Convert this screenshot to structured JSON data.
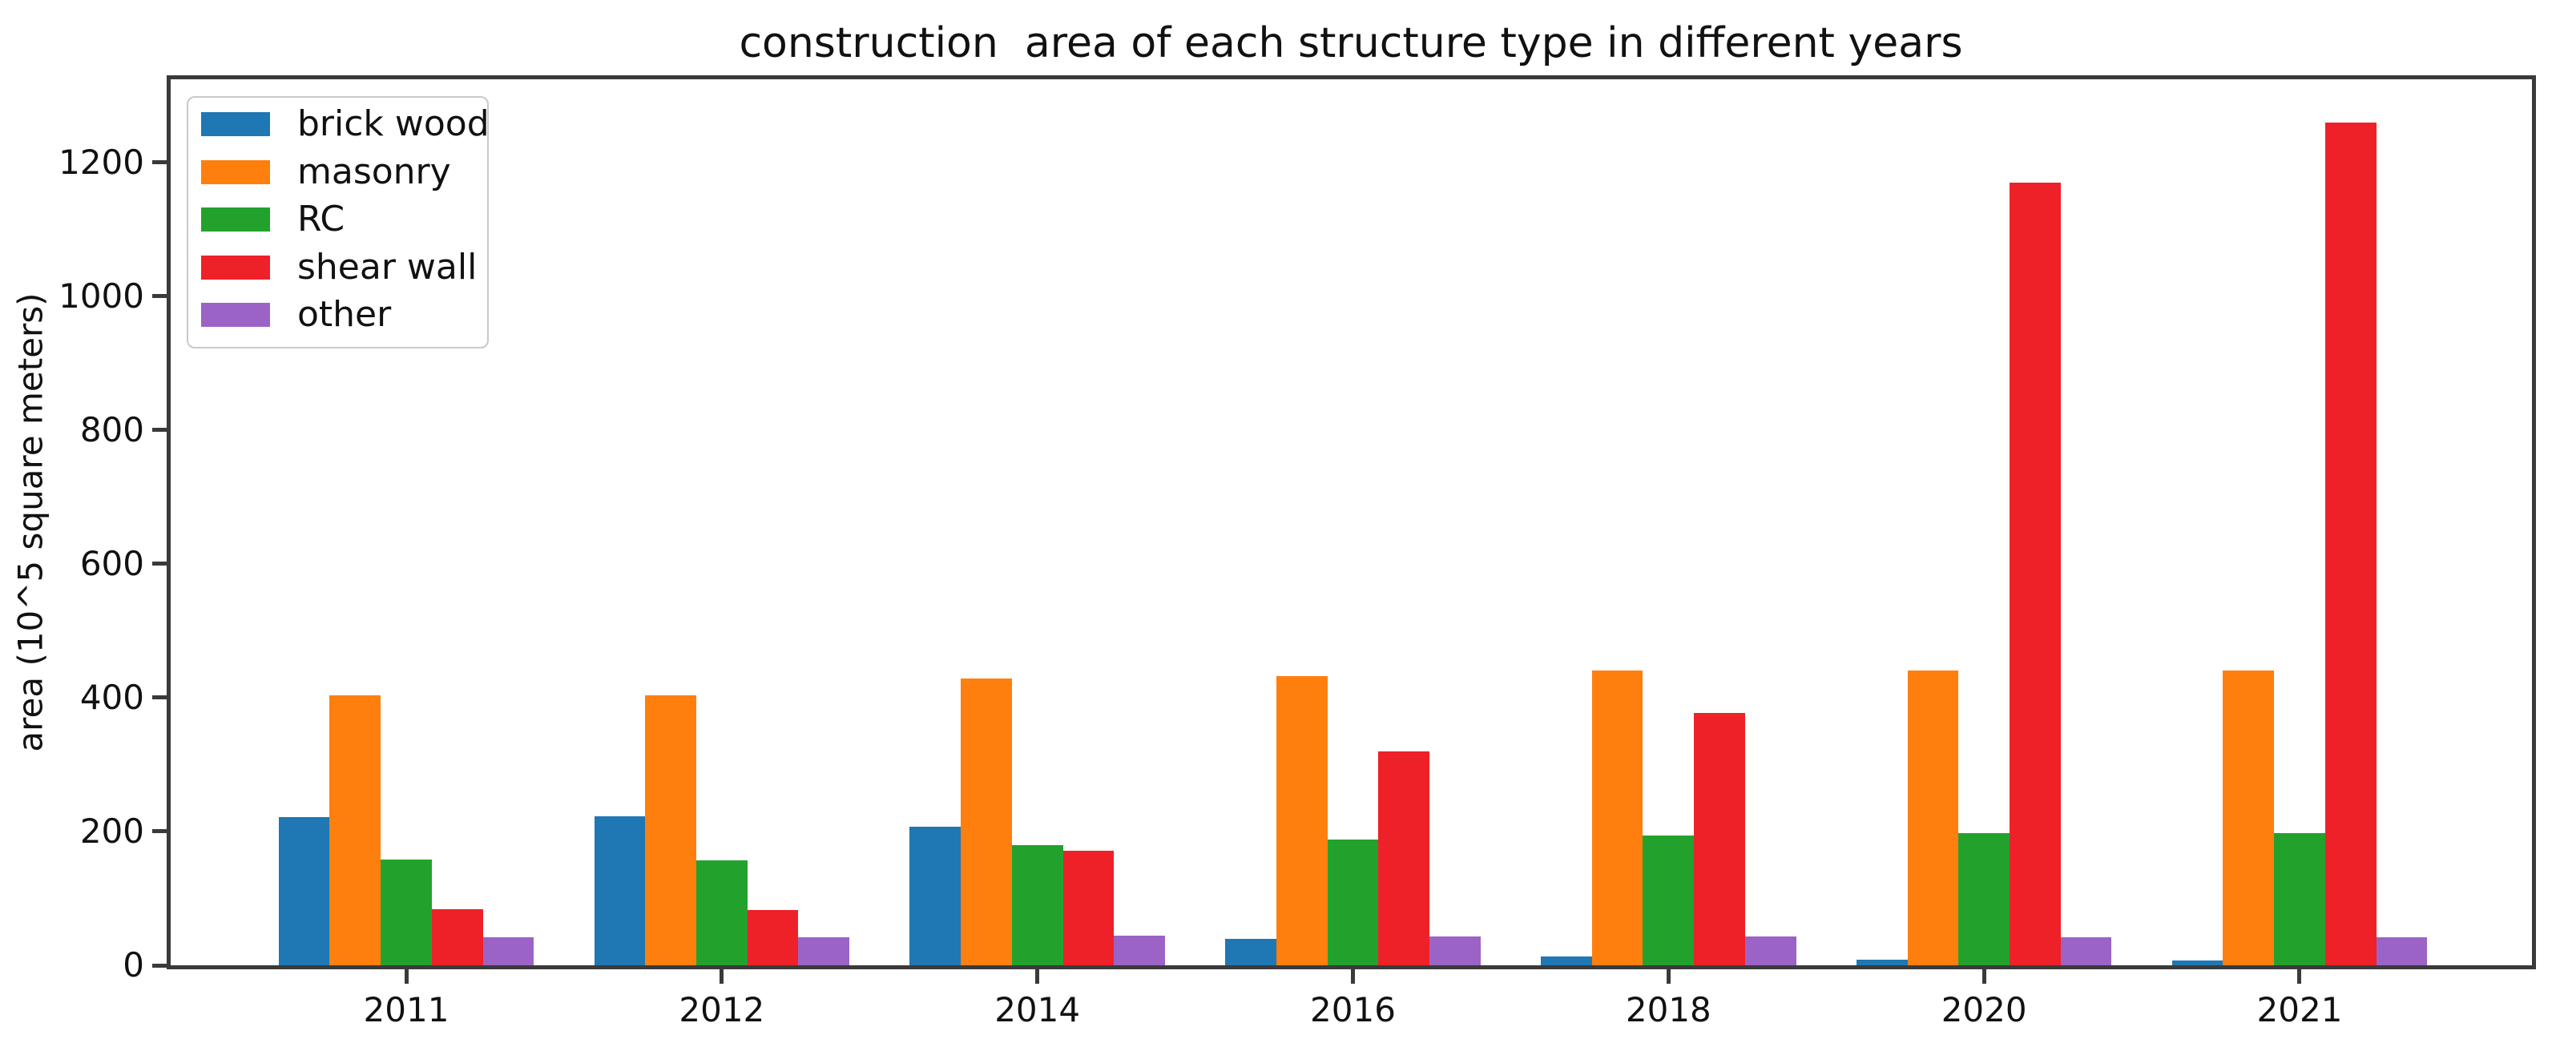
{
  "page": {
    "background": "#ffffff"
  },
  "chart_data": {
    "type": "bar",
    "title": "construction  area of each structure type in different years",
    "xlabel": "",
    "ylabel": "area (10^5 square meters)",
    "categories": [
      "2011",
      "2012",
      "2014",
      "2016",
      "2018",
      "2020",
      "2021"
    ],
    "series": [
      {
        "name": "brick wood",
        "color": "#1f77b4",
        "values": [
          222,
          223,
          207,
          40,
          13,
          8,
          7
        ]
      },
      {
        "name": "masonry",
        "color": "#ff7f0e",
        "values": [
          404,
          404,
          428,
          432,
          440,
          441,
          441
        ]
      },
      {
        "name": "RC",
        "color": "#22a22c",
        "values": [
          158,
          157,
          179,
          188,
          194,
          197,
          197
        ]
      },
      {
        "name": "shear wall",
        "color": "#ee2128",
        "values": [
          84,
          83,
          171,
          320,
          377,
          1169,
          1259
        ]
      },
      {
        "name": "other",
        "color": "#9c63c7",
        "values": [
          42,
          42,
          44,
          43,
          43,
          42,
          42
        ]
      }
    ],
    "ylim": [
      0,
      1324
    ],
    "yticks": [
      0,
      200,
      400,
      600,
      800,
      1000,
      1200
    ],
    "legend": {
      "position": "upper left",
      "entries": [
        "brick wood",
        "masonry",
        "RC",
        "shear wall",
        "other"
      ]
    },
    "grid": false,
    "axis_color": "#3a3a3a",
    "text_color": "#111111"
  }
}
